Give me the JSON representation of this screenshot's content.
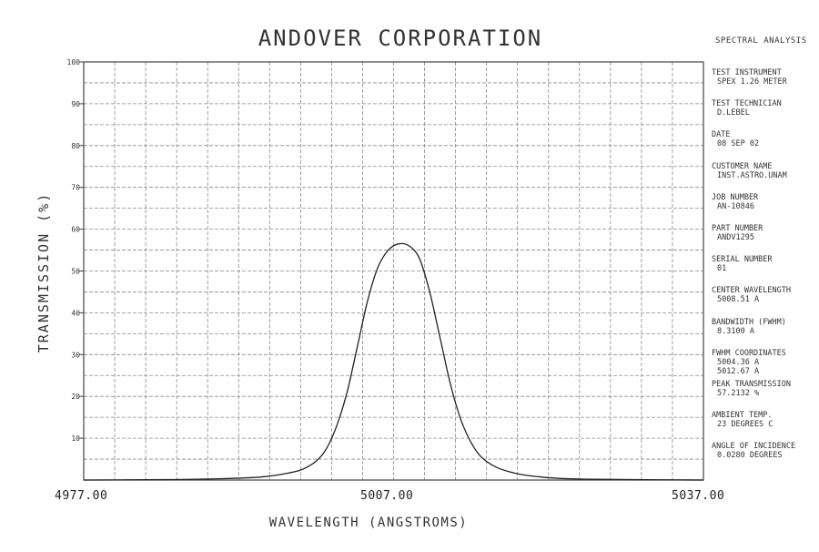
{
  "page": {
    "title": "ANDOVER CORPORATION",
    "sidebar_heading": "SPECTRAL ANALYSIS"
  },
  "info": [
    {
      "label": "TEST INSTRUMENT",
      "values": [
        "SPEX 1.26 METER"
      ]
    },
    {
      "label": "TEST TECHNICIAN",
      "values": [
        "D.LEBEL"
      ]
    },
    {
      "label": "DATE",
      "values": [
        "08 SEP 02"
      ]
    },
    {
      "label": "CUSTOMER NAME",
      "values": [
        "INST.ASTRO.UNAM"
      ]
    },
    {
      "label": "JOB NUMBER",
      "values": [
        "AN-10846"
      ]
    },
    {
      "label": "PART NUMBER",
      "values": [
        "ANDV1295"
      ]
    },
    {
      "label": "SERIAL NUMBER",
      "values": [
        "01"
      ]
    },
    {
      "label": "CENTER WAVELENGTH",
      "values": [
        "5008.51 A"
      ]
    },
    {
      "label": "BANDWIDTH (FWHM)",
      "values": [
        "8.3100 A"
      ]
    },
    {
      "label": "FWHM COORDINATES",
      "values": [
        "5004.36 A",
        "5012.67 A"
      ]
    },
    {
      "label": "PEAK TRANSMISSION",
      "values": [
        "57.2132 %"
      ]
    },
    {
      "label": "AMBIENT TEMP.",
      "values": [
        "23 DEGREES C"
      ]
    },
    {
      "label": "ANGLE OF INCIDENCE",
      "values": [
        "0.0280 DEGREES"
      ]
    }
  ],
  "chart_data": {
    "type": "line",
    "title": "ANDOVER CORPORATION",
    "xlabel": "WAVELENGTH (ANGSTROMS)",
    "ylabel": "TRANSMISSION (%)",
    "xlim": [
      4977.0,
      5037.0
    ],
    "ylim": [
      0,
      100
    ],
    "x_tick_labels": [
      "4977.00",
      "5007.00",
      "5037.00"
    ],
    "y_ticks": [
      10,
      20,
      30,
      40,
      50,
      60,
      70,
      80,
      90,
      100
    ],
    "y_tick_labels": [
      "10",
      "20",
      "30",
      "40",
      "50",
      "60",
      "70",
      "80",
      "90",
      "100"
    ],
    "grid": true,
    "series": [
      {
        "color": "#222222",
        "x": [
          4977.0,
          4985.0,
          4990.0,
          4994.0,
          4996.0,
          4998.0,
          4999.5,
          5000.5,
          5001.5,
          5002.5,
          5003.5,
          5004.5,
          5005.5,
          5006.5,
          5007.5,
          5008.5,
          5009.5,
          5010.5,
          5011.5,
          5012.5,
          5013.5,
          5014.5,
          5015.5,
          5017.0,
          5019.0,
          5021.0,
          5023.0,
          5026.0,
          5030.0,
          5037.0
        ],
        "y": [
          0.0,
          0.1,
          0.3,
          0.7,
          1.3,
          2.4,
          4.5,
          7.5,
          13.0,
          21.0,
          32.0,
          43.0,
          51.0,
          55.0,
          56.5,
          56.0,
          53.0,
          45.0,
          34.0,
          23.0,
          14.5,
          9.0,
          5.5,
          3.0,
          1.5,
          0.8,
          0.4,
          0.2,
          0.1,
          0.0
        ]
      }
    ]
  }
}
